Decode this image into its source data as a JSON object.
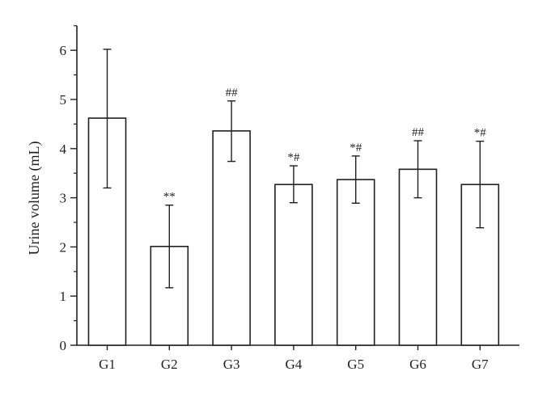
{
  "chart_data": {
    "type": "bar",
    "title": "",
    "xlabel": "",
    "ylabel": "Urine volume (mL)",
    "ylim": [
      0,
      6.5
    ],
    "yticks": [
      0,
      1,
      2,
      3,
      4,
      5,
      6
    ],
    "grid": false,
    "categories": [
      "G1",
      "G2",
      "G3",
      "G4",
      "G5",
      "G6",
      "G7"
    ],
    "values": [
      4.62,
      2.01,
      4.36,
      3.27,
      3.37,
      3.58,
      3.27
    ],
    "error_upper": [
      6.02,
      2.85,
      4.97,
      3.65,
      3.85,
      4.16,
      4.15
    ],
    "error_lower": [
      3.2,
      1.17,
      3.74,
      2.9,
      2.89,
      3.0,
      2.39
    ],
    "annotations": [
      "",
      "**",
      "##",
      "*#",
      "*#",
      "##",
      "*#"
    ],
    "colors": {
      "bar_fill": "#ffffff",
      "stroke": "#231f20"
    }
  }
}
